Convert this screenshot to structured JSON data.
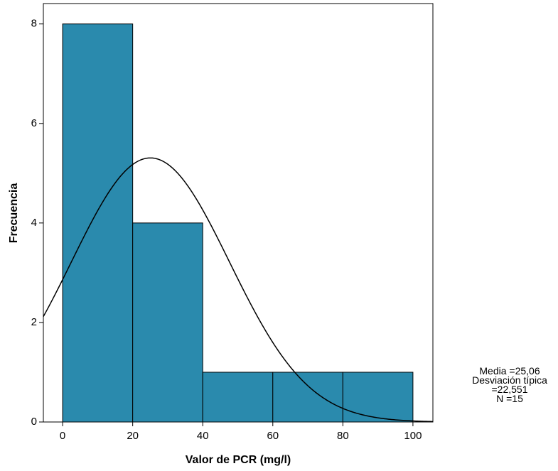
{
  "chart_data": {
    "type": "histogram",
    "x_label": "Valor de PCR (mg/l)",
    "y_label": "Frecuencia",
    "bins": [
      0,
      20,
      40,
      60,
      80,
      100
    ],
    "values": [
      8,
      4,
      1,
      1,
      1
    ],
    "color": "#2a8aad",
    "xlim": [
      -5.5,
      105.7
    ],
    "ylim": [
      0,
      8.41
    ],
    "xticks": [
      0,
      20,
      40,
      60,
      80,
      100
    ],
    "yticks": [
      0,
      2,
      4,
      6,
      8
    ],
    "normal_curve": true,
    "stats": {
      "mean": {
        "value": 25.06,
        "label": "Media =25,06"
      },
      "sd": {
        "value": 22.551,
        "label": "Desviación típica =22,551"
      },
      "n": {
        "value": 15,
        "label": "N =15"
      }
    }
  }
}
